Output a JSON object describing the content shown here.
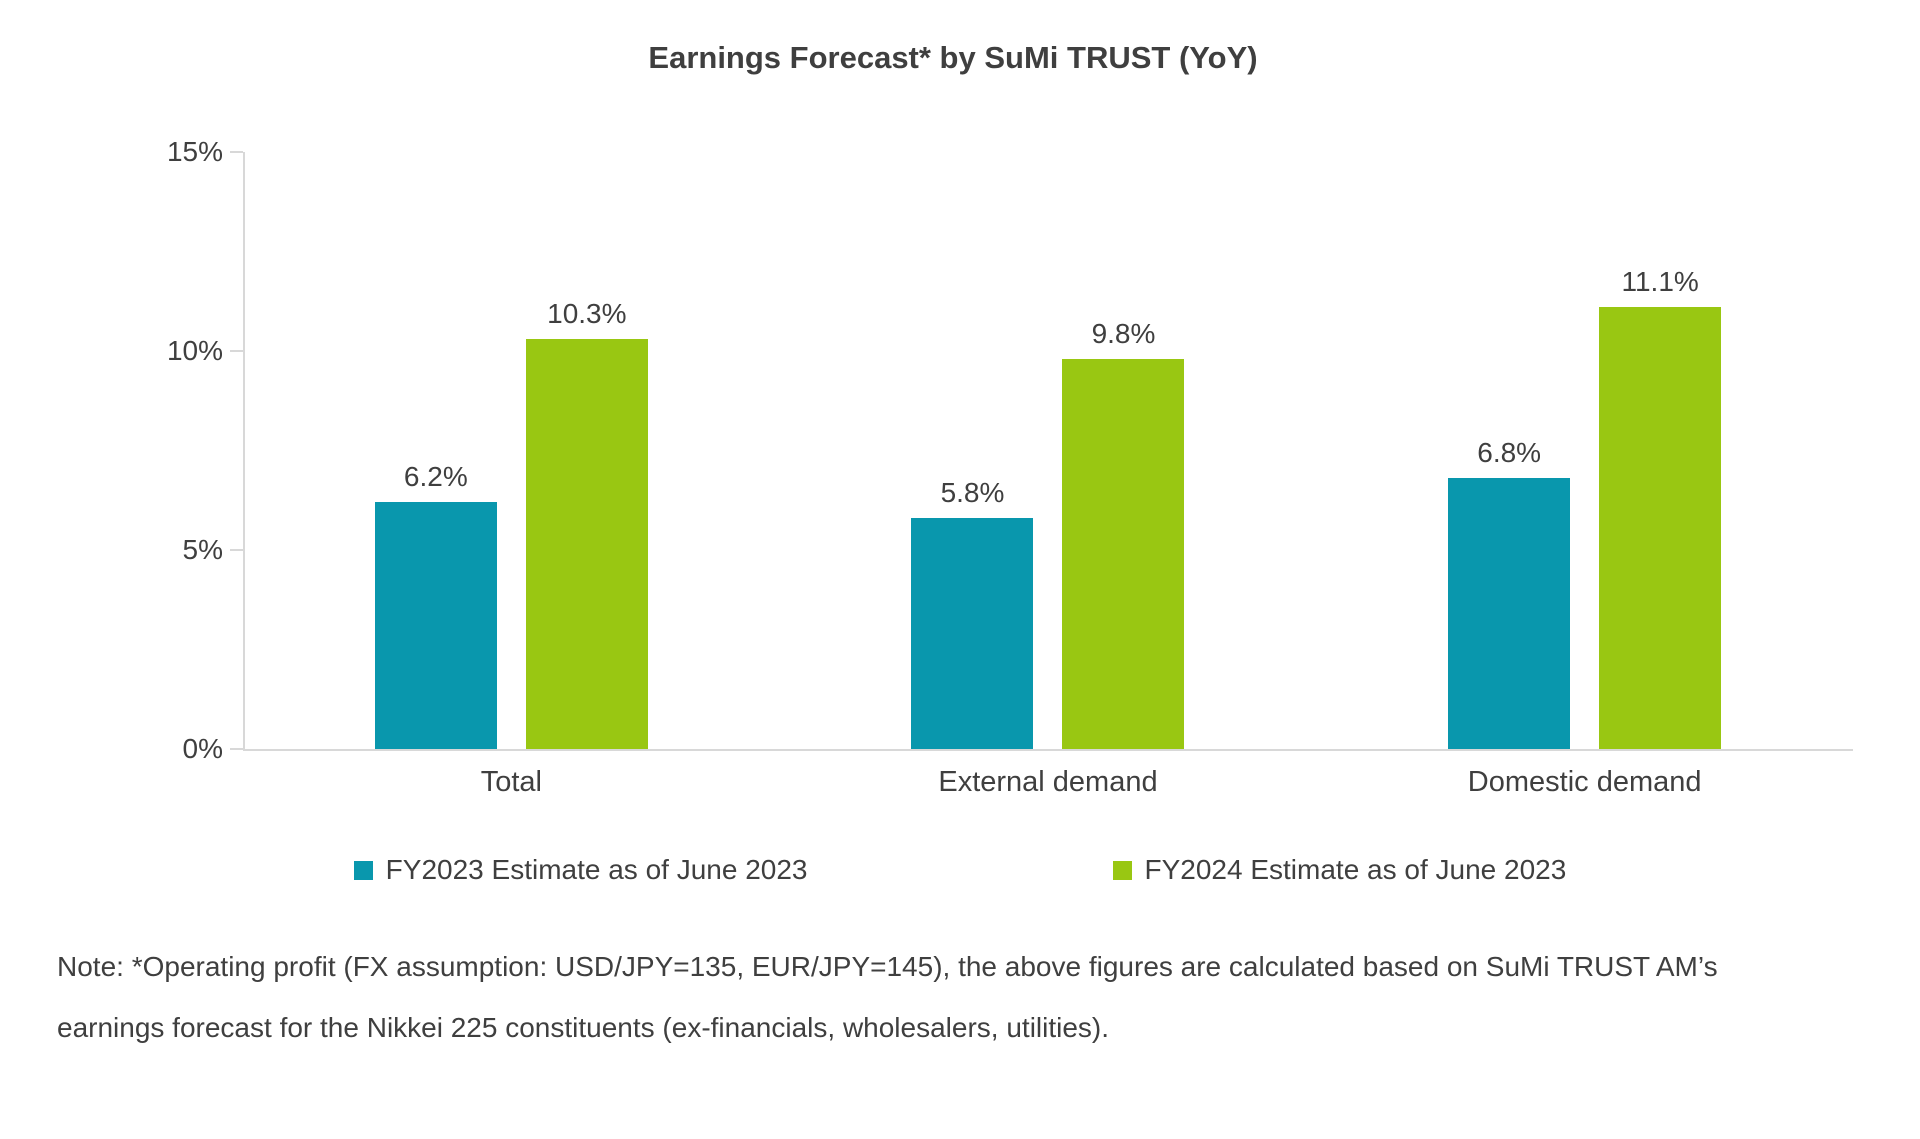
{
  "chart_data": {
    "type": "bar",
    "title": "Earnings Forecast* by SuMi TRUST (YoY)",
    "categories": [
      "Total",
      "External demand",
      "Domestic demand"
    ],
    "series": [
      {
        "name": "FY2023 Estimate as of June 2023",
        "color": "#0997AD",
        "values": [
          6.2,
          5.8,
          6.8
        ],
        "data_labels": [
          "6.2%",
          "5.8%",
          "6.8%"
        ]
      },
      {
        "name": "FY2024 Estimate as of June 2023",
        "color": "#99C712",
        "values": [
          10.3,
          9.8,
          11.1
        ],
        "data_labels": [
          "10.3%",
          "9.8%",
          "11.1%"
        ]
      }
    ],
    "y_axis": {
      "tick_labels": [
        "0%",
        "5%",
        "10%",
        "15%"
      ],
      "tick_values": [
        0,
        5,
        10,
        15
      ],
      "min": 0,
      "max": 15,
      "unit": "%"
    },
    "grid": false,
    "legend_position": "bottom",
    "colors": {
      "axis_line": "#D8D8D8",
      "text": "#3F3F3F",
      "background": "#FFFFFF"
    }
  },
  "note": {
    "text": "Note: *Operating profit (FX assumption: USD/JPY=135, EUR/JPY=145), the above figures are calculated based on SuMi TRUST AM’s\nearnings forecast for the Nikkei 225 constituents (ex-financials, wholesalers, utilities)."
  }
}
